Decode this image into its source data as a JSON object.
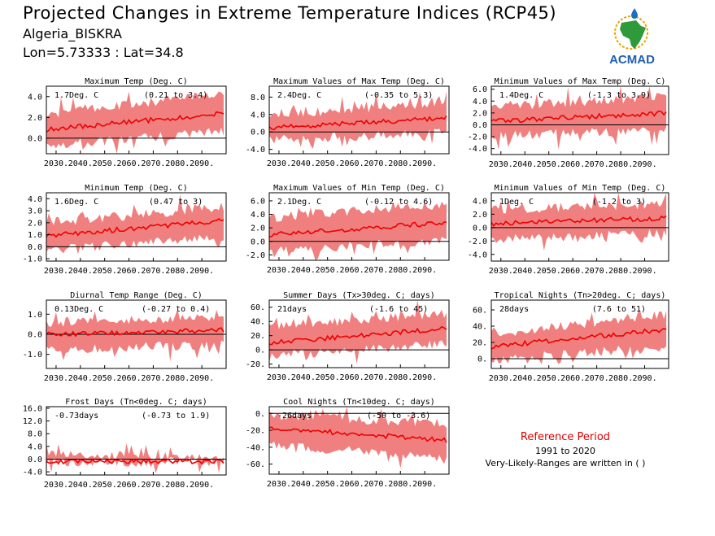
{
  "header": {
    "title": "Projected Changes in Extreme Temperature Indices (RCP45)",
    "location": "Algeria_BISKRA",
    "coords": "Lon=5.73333 : Lat=34.8"
  },
  "logo": {
    "text": "ACMAD",
    "icon": "africa-map-logo"
  },
  "colors": {
    "band": "#f08080",
    "line": "#ee0000",
    "zero": "#000000"
  },
  "reference": {
    "title": "Reference Period",
    "years": "1991 to 2020",
    "note": "Very-Likely-Ranges are written in ( )"
  },
  "chart_data": [
    {
      "type": "area",
      "title": "Maximum Temp (Deg. C)",
      "change": "1.7Deg. C",
      "range": "(0.21 to 3.4)",
      "xlim": [
        2026,
        2100
      ],
      "xticks": [
        2030,
        2040,
        2050,
        2060,
        2070,
        2080,
        2090
      ],
      "xtick_labels": [
        "2030.",
        "2040.",
        "2050.",
        "2060.",
        "2070.",
        "2080.",
        "2090."
      ],
      "ylim": [
        -1.5,
        5
      ],
      "yticks": [
        0,
        2,
        4
      ],
      "ytick_labels": [
        "0.0",
        "2.0",
        "4.0"
      ],
      "trend": [
        0.8,
        2.4
      ],
      "band_low": [
        -0.7,
        0.6
      ],
      "band_high": [
        2.3,
        4.3
      ]
    },
    {
      "type": "area",
      "title": "Maximum Values of Max Temp (Deg. C)",
      "change": "2.4Deg. C",
      "range": "(-0.35 to 5.3)",
      "xlim": [
        2026,
        2100
      ],
      "xticks": [
        2030,
        2040,
        2050,
        2060,
        2070,
        2080,
        2090
      ],
      "xtick_labels": [
        "2030.",
        "2040.",
        "2050.",
        "2060.",
        "2070.",
        "2080.",
        "2090."
      ],
      "ylim": [
        -5,
        10.5
      ],
      "yticks": [
        -4,
        0,
        4,
        8
      ],
      "ytick_labels": [
        "-4.0",
        "0.0",
        "4.0",
        "8.0"
      ],
      "trend": [
        0.9,
        3.2
      ],
      "band_low": [
        -1.8,
        -0.2
      ],
      "band_high": [
        3.8,
        6.6
      ]
    },
    {
      "type": "area",
      "title": "Minimum Values of Max Temp (Deg. C)",
      "change": "1.4Deg. C",
      "range": "(-1.3 to 3.9)",
      "xlim": [
        2026,
        2100
      ],
      "xticks": [
        2030,
        2040,
        2050,
        2060,
        2070,
        2080,
        2090
      ],
      "xtick_labels": [
        "2030.",
        "2040.",
        "2050.",
        "2060.",
        "2070.",
        "2080.",
        "2090."
      ],
      "ylim": [
        -5,
        6.5
      ],
      "yticks": [
        -4,
        -2,
        0,
        2,
        4,
        6
      ],
      "ytick_labels": [
        "-4.0",
        "-2.0",
        "0.0",
        "2.0",
        "4.0",
        "6.0"
      ],
      "trend": [
        0.6,
        2.0
      ],
      "band_low": [
        -1.8,
        -0.8
      ],
      "band_high": [
        3.0,
        4.8
      ]
    },
    {
      "type": "area",
      "title": "Minimum Temp (Deg. C)",
      "change": "1.6Deg. C",
      "range": "(0.47 to 3)",
      "xlim": [
        2026,
        2100
      ],
      "xticks": [
        2030,
        2040,
        2050,
        2060,
        2070,
        2080,
        2090
      ],
      "xtick_labels": [
        "2030.",
        "2040.",
        "2050.",
        "2060.",
        "2070.",
        "2080.",
        "2090."
      ],
      "ylim": [
        -1.2,
        4.5
      ],
      "yticks": [
        -1,
        0,
        1,
        2,
        3,
        4
      ],
      "ytick_labels": [
        "-1.0",
        "0.0",
        "1.0",
        "2.0",
        "3.0",
        "4.0"
      ],
      "trend": [
        0.9,
        2.2
      ],
      "band_low": [
        -0.3,
        0.8
      ],
      "band_high": [
        2.0,
        3.3
      ]
    },
    {
      "type": "area",
      "title": "Maximum Values of Min Temp (Deg. C)",
      "change": "2.1Deg. C",
      "range": "(-0.12 to 4.6)",
      "xlim": [
        2026,
        2100
      ],
      "xticks": [
        2030,
        2040,
        2050,
        2060,
        2070,
        2080,
        2090
      ],
      "xtick_labels": [
        "2030.",
        "2040.",
        "2050.",
        "2060.",
        "2070.",
        "2080.",
        "2090."
      ],
      "ylim": [
        -2.8,
        7.2
      ],
      "yticks": [
        -2,
        0,
        2,
        4,
        6
      ],
      "ytick_labels": [
        "-2.0",
        "0.0",
        "2.0",
        "4.0",
        "6.0"
      ],
      "trend": [
        1.0,
        2.8
      ],
      "band_low": [
        -1.4,
        0.2
      ],
      "band_high": [
        3.5,
        5.5
      ]
    },
    {
      "type": "area",
      "title": "Minimum Values of Min Temp (Deg. C)",
      "change": "1Deg. C",
      "range": "(-1.2 to 3)",
      "xlim": [
        2026,
        2100
      ],
      "xticks": [
        2030,
        2040,
        2050,
        2060,
        2070,
        2080,
        2090
      ],
      "xtick_labels": [
        "2030.",
        "2040.",
        "2050.",
        "2060.",
        "2070.",
        "2080.",
        "2090."
      ],
      "ylim": [
        -5,
        5.2
      ],
      "yticks": [
        -4,
        -2,
        0,
        2,
        4
      ],
      "ytick_labels": [
        "-4.0",
        "-2.0",
        "0.0",
        "2.0",
        "4.0"
      ],
      "trend": [
        0.6,
        1.4
      ],
      "band_low": [
        -1.8,
        -0.8
      ],
      "band_high": [
        2.6,
        3.6
      ]
    },
    {
      "type": "area",
      "title": "Diurnal Temp Range (Deg. C)",
      "change": "0.13Deg. C",
      "range": "(-0.27 to 0.4)",
      "xlim": [
        2026,
        2100
      ],
      "xticks": [
        2030,
        2040,
        2050,
        2060,
        2070,
        2080,
        2090
      ],
      "xtick_labels": [
        "2030.",
        "2040.",
        "2050.",
        "2060.",
        "2070.",
        "2080.",
        "2090."
      ],
      "ylim": [
        -1.7,
        1.7
      ],
      "yticks": [
        -1,
        0,
        1
      ],
      "ytick_labels": [
        "-1.0",
        "0.0",
        "1.0"
      ],
      "trend": [
        0.0,
        0.2
      ],
      "band_low": [
        -0.8,
        -0.5
      ],
      "band_high": [
        0.6,
        0.8
      ]
    },
    {
      "type": "area",
      "title": "Summer Days (Tx>30deg. C; days)",
      "change": "21days",
      "range": "(-1.6 to 45)",
      "xlim": [
        2026,
        2100
      ],
      "xticks": [
        2030,
        2040,
        2050,
        2060,
        2070,
        2080,
        2090
      ],
      "xtick_labels": [
        "2030.",
        "2040.",
        "2050.",
        "2060.",
        "2070.",
        "2080.",
        "2090."
      ],
      "ylim": [
        -25,
        70
      ],
      "yticks": [
        -20,
        0,
        20,
        40,
        60
      ],
      "ytick_labels": [
        "-20.",
        "0.",
        "20.",
        "40.",
        "60."
      ],
      "trend": [
        10,
        30
      ],
      "band_low": [
        -8,
        8
      ],
      "band_high": [
        33,
        52
      ]
    },
    {
      "type": "area",
      "title": "Tropical Nights (Tn>20deg. C; days)",
      "change": "28days",
      "range": "(7.6 to 51)",
      "xlim": [
        2026,
        2100
      ],
      "xticks": [
        2030,
        2040,
        2050,
        2060,
        2070,
        2080,
        2090
      ],
      "xtick_labels": [
        "2030.",
        "2040.",
        "2050.",
        "2060.",
        "2070.",
        "2080.",
        "2090."
      ],
      "ylim": [
        -12,
        72
      ],
      "yticks": [
        0,
        20,
        40,
        60
      ],
      "ytick_labels": [
        "0.",
        "20.",
        "40.",
        "60."
      ],
      "trend": [
        15,
        36
      ],
      "band_low": [
        -2,
        15
      ],
      "band_high": [
        30,
        55
      ]
    },
    {
      "type": "area",
      "title": "Frost Days (Tn<0deg. C; days)",
      "change": "-0.73days",
      "range": "(-0.73 to 1.9)",
      "xlim": [
        2026,
        2100
      ],
      "xticks": [
        2030,
        2040,
        2050,
        2060,
        2070,
        2080,
        2090
      ],
      "xtick_labels": [
        "2030.",
        "2040.",
        "2050.",
        "2060.",
        "2070.",
        "2080.",
        "2090."
      ],
      "ylim": [
        -5,
        16.5
      ],
      "yticks": [
        -4,
        0,
        4,
        8,
        12,
        16
      ],
      "ytick_labels": [
        "-4.0",
        "0.0",
        "4.0",
        "8.0",
        "12.0",
        "16.0"
      ],
      "trend": [
        -0.7,
        -0.7
      ],
      "band_low": [
        -0.9,
        -0.9
      ],
      "band_high": [
        1.5,
        0.8
      ]
    },
    {
      "type": "area",
      "title": "Cool Nights (Tn<10deg. C; days)",
      "change": "-26days",
      "range": "(-50 to -3.6)",
      "xlim": [
        2026,
        2100
      ],
      "xticks": [
        2030,
        2040,
        2050,
        2060,
        2070,
        2080,
        2090
      ],
      "xtick_labels": [
        "2030.",
        "2040.",
        "2050.",
        "2060.",
        "2070.",
        "2080.",
        "2090."
      ],
      "ylim": [
        -72,
        8
      ],
      "yticks": [
        -60,
        -40,
        -20,
        0
      ],
      "ytick_labels": [
        "-60.",
        "-40.",
        "-20.",
        "0."
      ],
      "trend": [
        -17,
        -32
      ],
      "band_low": [
        -38,
        -52
      ],
      "band_high": [
        -2,
        -12
      ]
    }
  ]
}
